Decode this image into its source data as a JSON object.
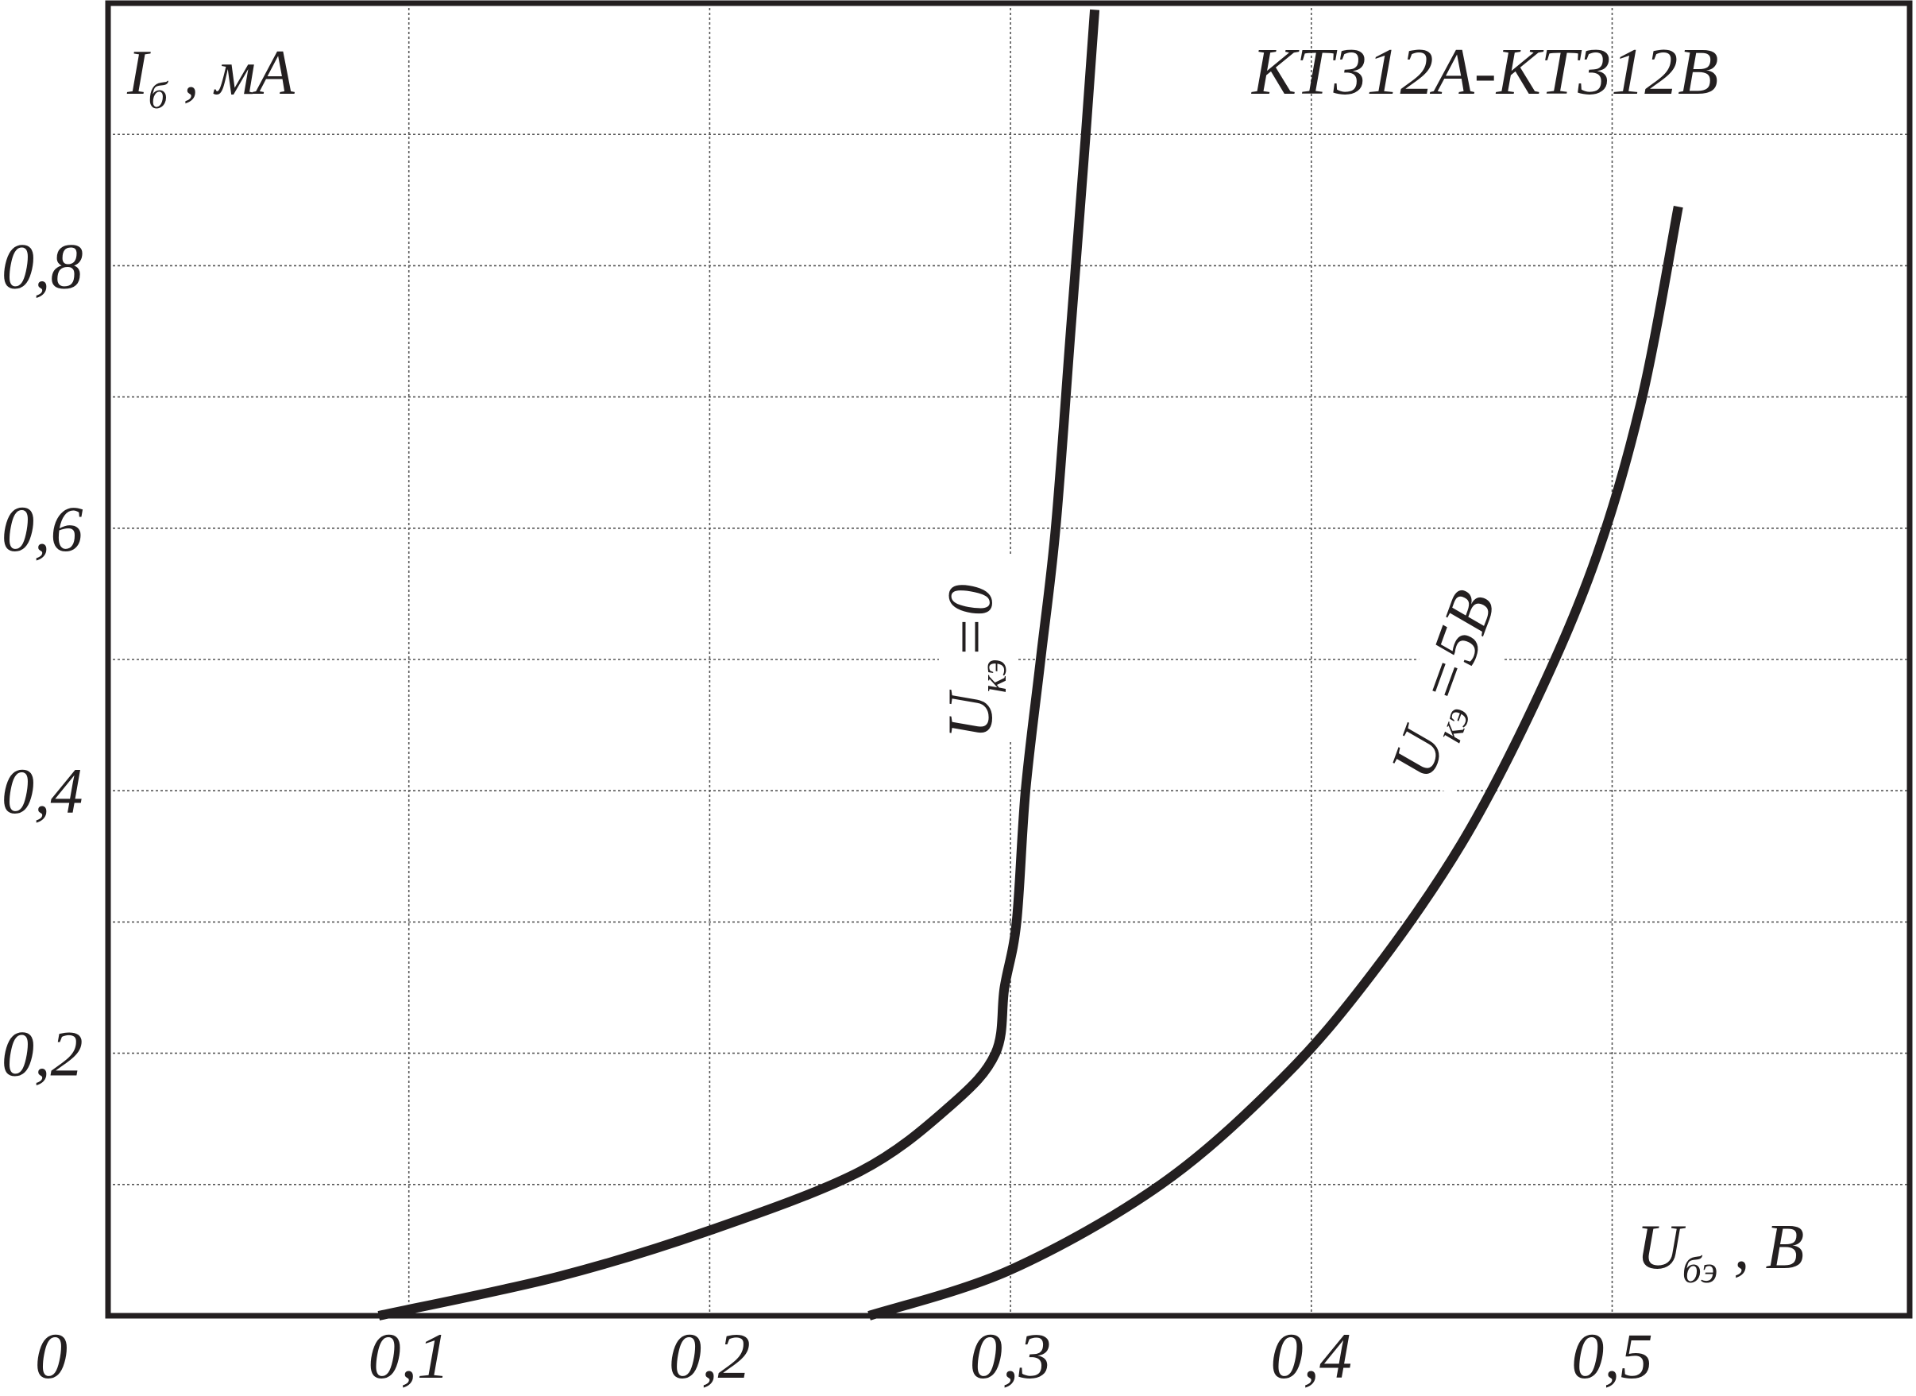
{
  "chart_data": {
    "type": "line",
    "title": "КТ312А-КТ312В",
    "xlabel": {
      "main": "U",
      "sub": "бэ",
      "unit": " , В"
    },
    "ylabel": {
      "main": "I",
      "sub": "б",
      "unit": " , мА"
    },
    "xlim": [
      0,
      0.6
    ],
    "ylim": [
      0,
      1.0
    ],
    "x_ticks": [
      {
        "value": 0.1,
        "label": "0,1"
      },
      {
        "value": 0.2,
        "label": "0,2"
      },
      {
        "value": 0.3,
        "label": "0,3"
      },
      {
        "value": 0.4,
        "label": "0,4"
      },
      {
        "value": 0.5,
        "label": "0,5"
      }
    ],
    "y_ticks": [
      {
        "value": 0.2,
        "label": "0,2"
      },
      {
        "value": 0.4,
        "label": "0,4"
      },
      {
        "value": 0.6,
        "label": "0,6"
      },
      {
        "value": 0.8,
        "label": "0,8"
      }
    ],
    "origin_label": "0",
    "grid": true,
    "grid_x_step": 0.1,
    "grid_y_step": 0.1,
    "colors": {
      "line": "#231f20",
      "grid": "#555555",
      "frame": "#231f20"
    },
    "series": [
      {
        "label": {
          "main": "U",
          "sub": "кэ",
          "rest": "=0"
        },
        "x": [
          0.09,
          0.15,
          0.2,
          0.25,
          0.28,
          0.295,
          0.298,
          0.302,
          0.305,
          0.31,
          0.315,
          0.32,
          0.325,
          0.328
        ],
        "y": [
          0.0,
          0.03,
          0.065,
          0.11,
          0.16,
          0.2,
          0.25,
          0.3,
          0.4,
          0.5,
          0.6,
          0.75,
          0.9,
          0.995
        ]
      },
      {
        "label": {
          "main": "U",
          "sub": "кэ",
          "rest": "=5В"
        },
        "x": [
          0.253,
          0.3,
          0.35,
          0.39,
          0.42,
          0.45,
          0.475,
          0.495,
          0.51,
          0.522
        ],
        "y": [
          0.0,
          0.035,
          0.1,
          0.18,
          0.26,
          0.36,
          0.47,
          0.58,
          0.7,
          0.845
        ]
      }
    ]
  }
}
